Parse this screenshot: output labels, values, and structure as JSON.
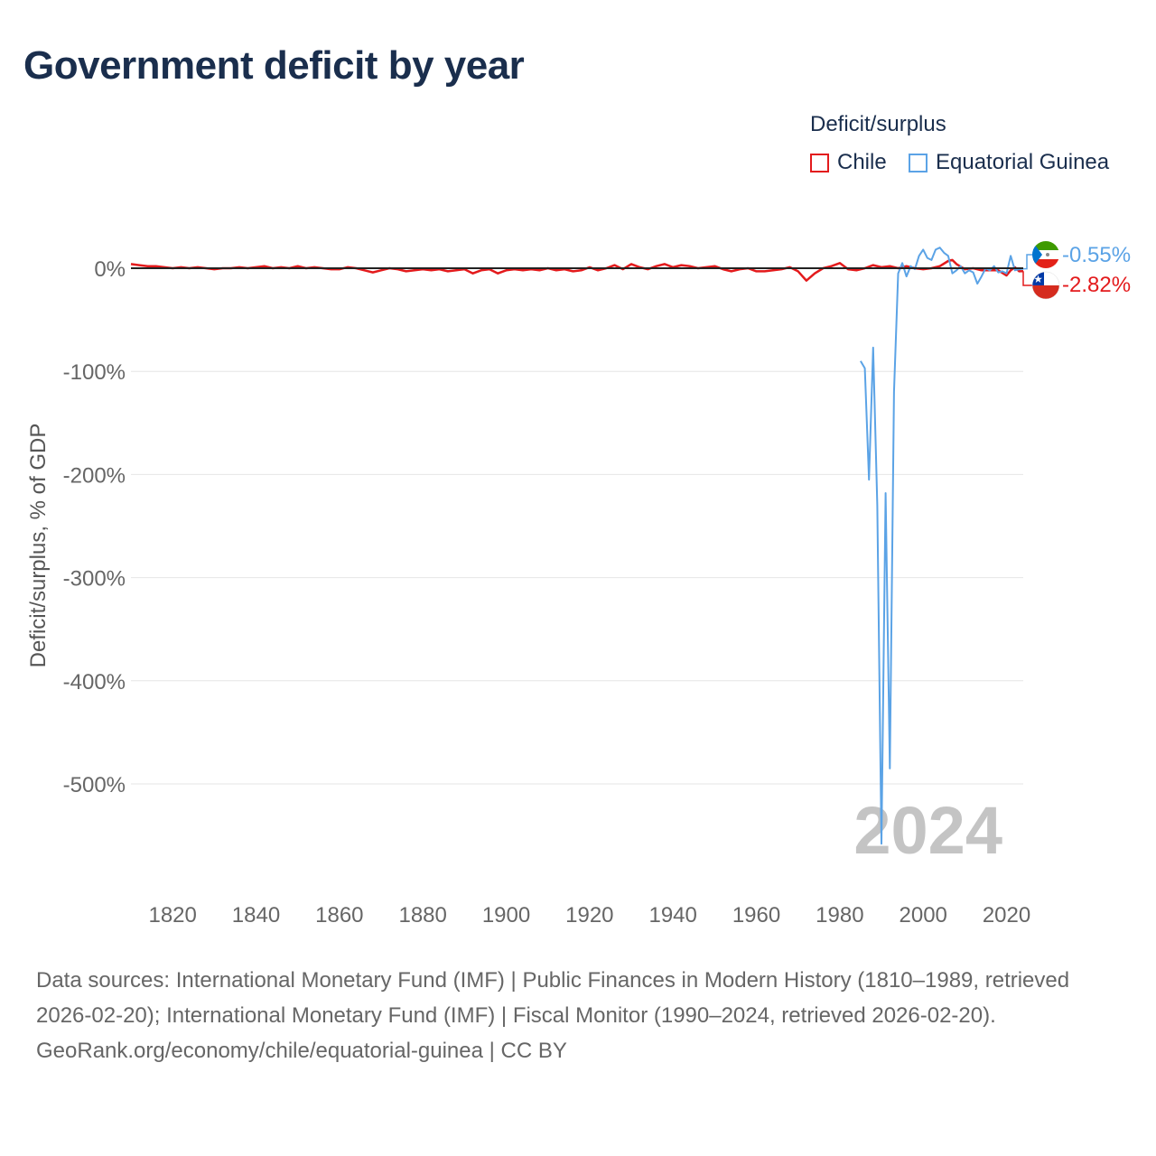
{
  "title": "Government deficit by year",
  "legend": {
    "title": "Deficit/surplus",
    "items": [
      {
        "label": "Chile",
        "color": "#e31a1c"
      },
      {
        "label": "Equatorial Guinea",
        "color": "#5ba3e6"
      }
    ]
  },
  "footer": {
    "sources": "Data sources: International Monetary Fund (IMF) | Public Finances in Modern History (1810–1989, retrieved 2026-02-20); International Monetary Fund (IMF) | Fiscal Monitor (1990–2024, retrieved 2026-02-20).",
    "credit": "GeoRank.org/economy/chile/equatorial-guinea | CC BY"
  },
  "chart_data": {
    "type": "line",
    "title": "Government deficit by year",
    "xlabel": "",
    "ylabel": "Deficit/surplus, % of GDP",
    "xlim": [
      1810,
      2024
    ],
    "ylim": [
      -600,
      30
    ],
    "x_ticks": [
      1820,
      1840,
      1860,
      1880,
      1900,
      1920,
      1940,
      1960,
      1980,
      2000,
      2020
    ],
    "y_ticks": [
      0,
      -100,
      -200,
      -300,
      -400,
      -500
    ],
    "y_tick_labels": [
      "0%",
      "-100%",
      "-200%",
      "-300%",
      "-400%",
      "-500%"
    ],
    "year_watermark": "2024",
    "series": [
      {
        "name": "Chile",
        "color": "#e31a1c",
        "end_label": "-2.82%",
        "x": [
          1810,
          1812,
          1814,
          1816,
          1818,
          1820,
          1822,
          1824,
          1826,
          1828,
          1830,
          1832,
          1834,
          1836,
          1838,
          1840,
          1842,
          1844,
          1846,
          1848,
          1850,
          1852,
          1854,
          1856,
          1858,
          1860,
          1862,
          1864,
          1866,
          1868,
          1870,
          1872,
          1874,
          1876,
          1878,
          1880,
          1882,
          1884,
          1886,
          1888,
          1890,
          1892,
          1894,
          1896,
          1898,
          1900,
          1902,
          1904,
          1906,
          1908,
          1910,
          1912,
          1914,
          1916,
          1918,
          1920,
          1922,
          1924,
          1926,
          1928,
          1930,
          1932,
          1934,
          1936,
          1938,
          1940,
          1942,
          1944,
          1946,
          1948,
          1950,
          1952,
          1954,
          1956,
          1958,
          1960,
          1962,
          1964,
          1966,
          1968,
          1970,
          1972,
          1974,
          1976,
          1978,
          1980,
          1982,
          1984,
          1986,
          1988,
          1990,
          1992,
          1994,
          1996,
          1998,
          2000,
          2002,
          2004,
          2006,
          2007,
          2008,
          2010,
          2012,
          2014,
          2016,
          2018,
          2020,
          2021,
          2022,
          2023,
          2024
        ],
        "values": [
          4,
          3,
          2,
          2,
          1,
          0,
          1,
          0,
          1,
          0,
          -1,
          0,
          0,
          1,
          0,
          1,
          2,
          0,
          1,
          0,
          2,
          0,
          1,
          0,
          -1,
          -1,
          1,
          0,
          -2,
          -4,
          -2,
          0,
          -1,
          -3,
          -2,
          -1,
          -2,
          -1,
          -3,
          -2,
          -1,
          -5,
          -2,
          -1,
          -5,
          -2,
          -1,
          -2,
          -1,
          -2,
          0,
          -2,
          -1,
          -3,
          -2,
          1,
          -2,
          0,
          3,
          -1,
          4,
          1,
          -1,
          2,
          4,
          1,
          3,
          2,
          0,
          1,
          2,
          -1,
          -3,
          -1,
          0,
          -3,
          -3,
          -2,
          -1,
          1,
          -3,
          -12,
          -5,
          0,
          2,
          5,
          -1,
          -2,
          0,
          3,
          1,
          2,
          0,
          2,
          0,
          -1,
          0,
          2,
          7,
          8,
          4,
          -1,
          0,
          -2,
          -2,
          -2,
          -7,
          -2,
          1,
          -3,
          -2.82
        ]
      },
      {
        "name": "Equatorial Guinea",
        "color": "#5ba3e6",
        "end_label": "-0.55%",
        "x": [
          1985,
          1986,
          1987,
          1988,
          1989,
          1990,
          1991,
          1992,
          1993,
          1994,
          1995,
          1996,
          1997,
          1998,
          1999,
          2000,
          2001,
          2002,
          2003,
          2004,
          2005,
          2006,
          2007,
          2008,
          2009,
          2010,
          2011,
          2012,
          2013,
          2014,
          2015,
          2016,
          2017,
          2018,
          2019,
          2020,
          2021,
          2022,
          2023,
          2024
        ],
        "values": [
          -90,
          -97,
          -205,
          -77,
          -230,
          -558,
          -218,
          -485,
          -120,
          -5,
          5,
          -8,
          2,
          -1,
          12,
          18,
          10,
          8,
          18,
          20,
          15,
          12,
          -5,
          -2,
          2,
          -5,
          -2,
          -4,
          -15,
          -8,
          0,
          -2,
          2,
          -4,
          -3,
          -5,
          12,
          -2,
          -1,
          -0.55
        ]
      }
    ]
  }
}
